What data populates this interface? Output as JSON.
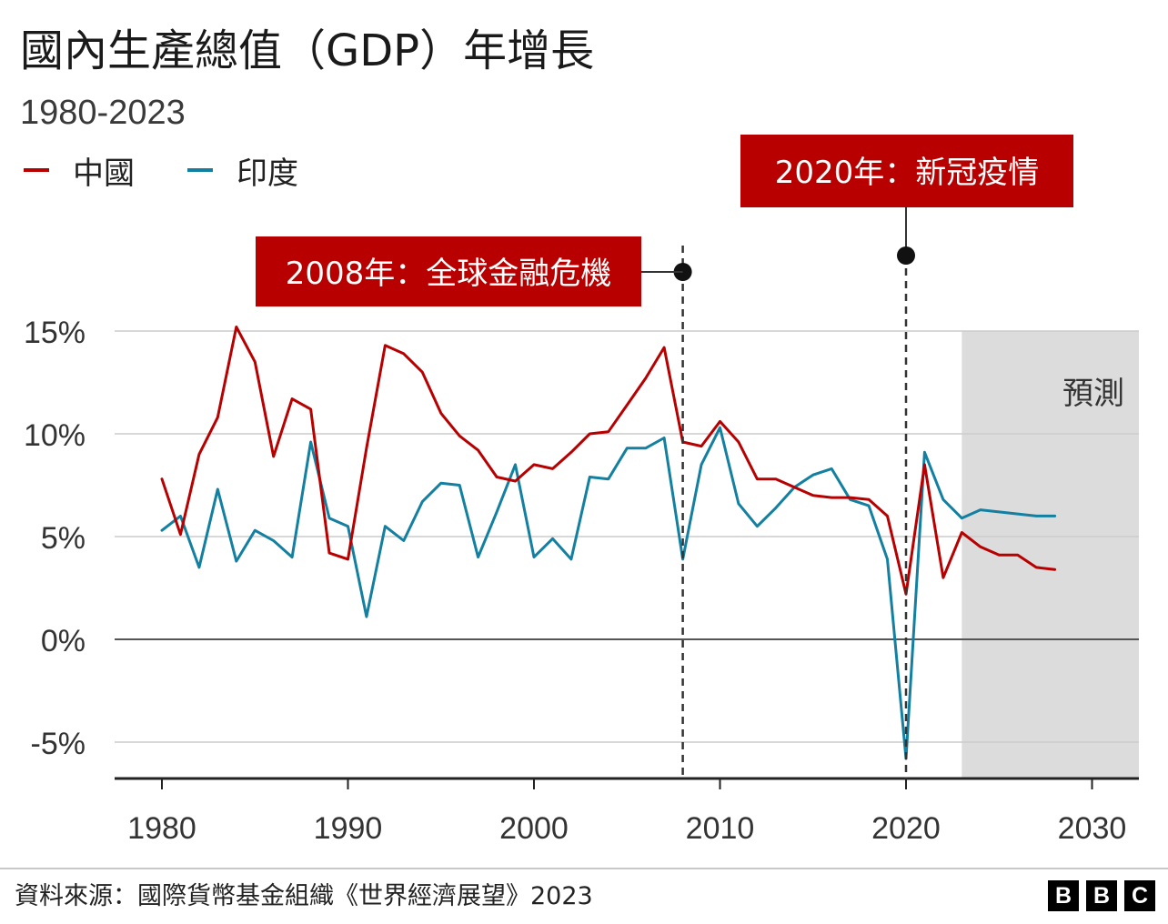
{
  "title": "國內生產總值（GDP）年增長",
  "subtitle": "1980-2023",
  "source": "資料來源：國際貨幣基金組織《世界經濟展望》2023",
  "logo": [
    "B",
    "B",
    "C"
  ],
  "colors": {
    "china": "#b80000",
    "india": "#1380a1",
    "forecast_band": "#dcdcdc",
    "annotation_bg": "#b80000",
    "grid": "#cccccc",
    "axis": "#222222"
  },
  "chart_data": {
    "type": "line",
    "xlim": [
      1977.5,
      2032.5
    ],
    "ylim": [
      -7,
      15
    ],
    "x_ticks": [
      1980,
      1990,
      2000,
      2010,
      2020,
      2030
    ],
    "y_ticks": [
      -5,
      0,
      5,
      10,
      15
    ],
    "y_tick_labels": [
      "-5%",
      "0%",
      "5%",
      "10%",
      "15%"
    ],
    "forecast": {
      "from": 2023,
      "label": "預測"
    },
    "series": [
      {
        "name": "中國",
        "color": "#b80000",
        "x": [
          1980,
          1981,
          1982,
          1983,
          1984,
          1985,
          1986,
          1987,
          1988,
          1989,
          1990,
          1991,
          1992,
          1993,
          1994,
          1995,
          1996,
          1997,
          1998,
          1999,
          2000,
          2001,
          2002,
          2003,
          2004,
          2005,
          2006,
          2007,
          2008,
          2009,
          2010,
          2011,
          2012,
          2013,
          2014,
          2015,
          2016,
          2017,
          2018,
          2019,
          2020,
          2021,
          2022,
          2023,
          2024,
          2025,
          2026,
          2027,
          2028
        ],
        "y": [
          7.8,
          5.1,
          9.0,
          10.8,
          15.2,
          13.5,
          8.9,
          11.7,
          11.2,
          4.2,
          3.9,
          9.3,
          14.3,
          13.9,
          13.0,
          11.0,
          9.9,
          9.2,
          7.9,
          7.7,
          8.5,
          8.3,
          9.1,
          10.0,
          10.1,
          11.4,
          12.7,
          14.2,
          9.6,
          9.4,
          10.6,
          9.6,
          7.8,
          7.8,
          7.4,
          7.0,
          6.9,
          6.9,
          6.8,
          6.0,
          2.2,
          8.5,
          3.0,
          5.2,
          4.5,
          4.1,
          4.1,
          3.5,
          3.4
        ]
      },
      {
        "name": "印度",
        "color": "#1380a1",
        "x": [
          1980,
          1981,
          1982,
          1983,
          1984,
          1985,
          1986,
          1987,
          1988,
          1989,
          1990,
          1991,
          1992,
          1993,
          1994,
          1995,
          1996,
          1997,
          1998,
          1999,
          2000,
          2001,
          2002,
          2003,
          2004,
          2005,
          2006,
          2007,
          2008,
          2009,
          2010,
          2011,
          2012,
          2013,
          2014,
          2015,
          2016,
          2017,
          2018,
          2019,
          2020,
          2021,
          2022,
          2023,
          2024,
          2025,
          2026,
          2027,
          2028
        ],
        "y": [
          5.3,
          6.0,
          3.5,
          7.3,
          3.8,
          5.3,
          4.8,
          4.0,
          9.6,
          5.9,
          5.5,
          1.1,
          5.5,
          4.8,
          6.7,
          7.6,
          7.5,
          4.0,
          6.2,
          8.5,
          4.0,
          4.9,
          3.9,
          7.9,
          7.8,
          9.3,
          9.3,
          9.8,
          3.9,
          8.5,
          10.3,
          6.6,
          5.5,
          6.4,
          7.4,
          8.0,
          8.3,
          6.8,
          6.5,
          3.9,
          -5.8,
          9.1,
          6.8,
          5.9,
          6.3,
          6.2,
          6.1,
          6.0,
          6.0
        ]
      }
    ],
    "annotations": [
      {
        "year": 2008,
        "label": "2008年：全球金融危機"
      },
      {
        "year": 2020,
        "label": "2020年：新冠疫情"
      }
    ]
  }
}
